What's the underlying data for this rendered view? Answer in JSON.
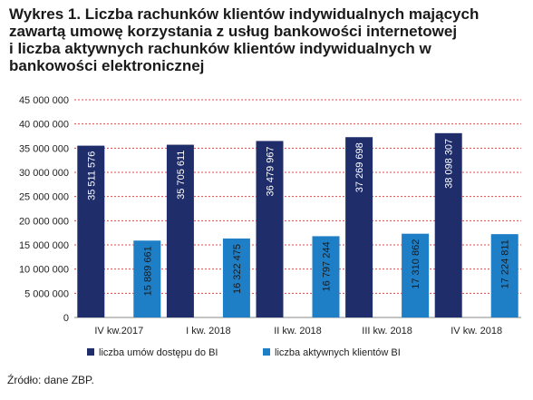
{
  "title_lines": [
    "Wykres 1. Liczba rachunków klientów indywidualnych mających",
    "zawartą umowę korzystania z usług bankowości internetowej",
    "i liczba aktywnych rachunków klientów indywidualnych w",
    "bankowości elektronicznej"
  ],
  "source": "Źródło: dane ZBP.",
  "chart_data": {
    "type": "bar",
    "categories": [
      "IV kw.2017",
      "I kw. 2018",
      "II kw. 2018",
      "III kw. 2018",
      "IV kw. 2018"
    ],
    "series": [
      {
        "name": "liczba umów dostępu do BI",
        "values": [
          35511576,
          35705611,
          36479967,
          37269698,
          38098307
        ],
        "labels": [
          "35 511 576",
          "35 705 611",
          "36 479 967",
          "37 269 698",
          "38 098 307"
        ],
        "color": "#1f2e6b"
      },
      {
        "name": "liczba aktywnych klientów BI",
        "values": [
          15889661,
          16322475,
          16797244,
          17310862,
          17224811
        ],
        "labels": [
          "15 889 661",
          "16 322 475",
          "16 797 244",
          "17 310 862",
          "17 224 811"
        ],
        "color": "#1f7fc6"
      }
    ],
    "ylim": [
      0,
      45000000
    ],
    "yticks": [
      0,
      5000000,
      10000000,
      15000000,
      20000000,
      25000000,
      30000000,
      35000000,
      40000000,
      45000000
    ],
    "ytick_labels": [
      "0",
      "5 000 000",
      "10 000 000",
      "15 000 000",
      "20 000 000",
      "25 000 000",
      "30 000 000",
      "35 000 000",
      "40 000 000",
      "45 000 000"
    ],
    "grid": true,
    "grid_color": "#e04848",
    "legend_placement": "bottom"
  }
}
